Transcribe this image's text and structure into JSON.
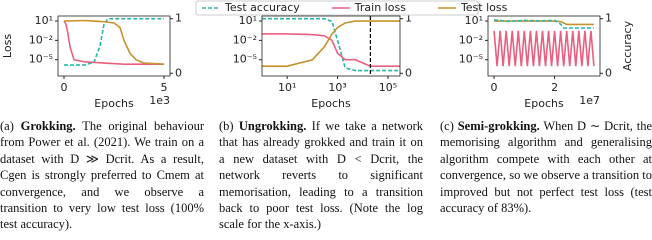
{
  "chart_data": [
    {
      "type": "line",
      "ylabel": "Loss",
      "xlabel": "Epochs",
      "x_offset_label": "1e3",
      "xlim": [
        -0.3,
        5.3
      ],
      "xticks": [
        0,
        5
      ],
      "yscale": "log",
      "ylim": [
        3e-08,
        60
      ],
      "yticks": [
        {
          "value": 10,
          "label": "10¹"
        },
        {
          "value": 0.01,
          "label": "10⁻²"
        },
        {
          "value": 1e-05,
          "label": "10⁻⁵"
        }
      ],
      "y2lim": [
        -0.05,
        1.05
      ],
      "y2ticks": [
        0,
        1
      ],
      "series": [
        {
          "name": "Test accuracy",
          "color": "#2ab5a5",
          "dash": true,
          "axis": "y2",
          "x": [
            0,
            0.5,
            1,
            1.5,
            1.8,
            2,
            2.2,
            2.5,
            3,
            4,
            5
          ],
          "values": [
            0.15,
            0.15,
            0.15,
            0.2,
            0.5,
            0.9,
            1,
            1,
            1,
            1,
            1
          ]
        },
        {
          "name": "Train loss",
          "color": "#e8607f",
          "x": [
            0,
            0.1,
            0.2,
            0.3,
            0.5,
            1,
            2,
            3,
            4,
            5
          ],
          "values": [
            10,
            3,
            0.1,
            0.001,
            1e-05,
            5e-06,
            3e-06,
            2e-06,
            2e-06,
            2e-06
          ]
        },
        {
          "name": "Test loss",
          "color": "#c8912e",
          "x": [
            0,
            1,
            1.5,
            2,
            2.5,
            2.8,
            3,
            3.3,
            3.6,
            4,
            5
          ],
          "values": [
            10,
            12,
            10,
            8,
            5,
            1,
            0.01,
            0.0001,
            1e-05,
            3e-06,
            2e-06
          ]
        }
      ]
    },
    {
      "type": "line",
      "xlabel": "Epochs",
      "xscale": "log",
      "xlim": [
        1,
        300000
      ],
      "xticks": [
        {
          "value": 10,
          "label": "10¹"
        },
        {
          "value": 1000,
          "label": "10³"
        },
        {
          "value": 100000,
          "label": "10⁵"
        }
      ],
      "yscale": "log",
      "ylim": [
        3e-08,
        60
      ],
      "yticks": [
        {
          "value": 10,
          "label": "10¹"
        },
        {
          "value": 0.01,
          "label": "10⁻²"
        },
        {
          "value": 1e-05,
          "label": "10⁻⁵"
        }
      ],
      "y2lim": [
        -0.05,
        1.05
      ],
      "y2ticks": [
        0,
        1
      ],
      "vline": 20000,
      "series": [
        {
          "name": "Test accuracy",
          "color": "#2ab5a5",
          "dash": true,
          "axis": "y2",
          "x": [
            1,
            10,
            100,
            300,
            600,
            1000,
            2000,
            5000,
            20000,
            100000,
            300000
          ],
          "values": [
            1,
            1,
            1,
            1,
            0.95,
            0.6,
            0.1,
            0.05,
            0.05,
            0.05,
            0.05
          ]
        },
        {
          "name": "Train loss",
          "color": "#e8607f",
          "x": [
            1,
            10,
            100,
            300,
            600,
            1000,
            2000,
            5000,
            20000,
            100000,
            300000
          ],
          "values": [
            0.1,
            0.1,
            0.08,
            0.05,
            0.01,
            0.0001,
            1e-05,
            1e-05,
            1e-06,
            1e-06,
            1e-06
          ]
        },
        {
          "name": "Test loss",
          "color": "#c8912e",
          "x": [
            1,
            10,
            100,
            300,
            600,
            1000,
            2000,
            5000,
            20000,
            100000,
            300000
          ],
          "values": [
            1e-06,
            1e-06,
            1e-05,
            0.001,
            0.1,
            1,
            5,
            10,
            10,
            10,
            10
          ]
        }
      ]
    },
    {
      "type": "line",
      "xlabel": "Epochs",
      "x_offset_label": "1e7",
      "y2label": "Accuracy",
      "xlim": [
        -0.2,
        3.5
      ],
      "xticks": [
        0,
        2
      ],
      "yscale": "log",
      "ylim": [
        3e-08,
        60
      ],
      "yticks": [
        {
          "value": 10,
          "label": "10¹"
        },
        {
          "value": 0.01,
          "label": "10⁻²"
        },
        {
          "value": 1e-05,
          "label": "10⁻⁵"
        }
      ],
      "y2lim": [
        -0.05,
        1.05
      ],
      "y2ticks": [
        0,
        1
      ],
      "series": [
        {
          "name": "Train loss",
          "color": "#e8607f",
          "x": [
            0,
            0.1,
            0.2,
            0.3,
            0.4,
            0.5,
            0.6,
            0.7,
            0.8,
            0.9,
            1,
            1.1,
            1.2,
            1.3,
            1.4,
            1.5,
            1.6,
            1.7,
            1.8,
            1.9,
            2,
            2.1,
            2.2,
            2.3,
            2.4,
            2.5,
            2.6,
            2.7,
            2.8,
            2.9,
            3,
            3.1,
            3.2,
            3.3
          ],
          "values": [
            0.3,
            1e-06,
            0.3,
            1e-06,
            0.3,
            1e-06,
            0.3,
            1e-06,
            0.3,
            1e-06,
            0.3,
            1e-06,
            0.3,
            1e-06,
            0.3,
            1e-06,
            0.3,
            1e-06,
            0.3,
            1e-06,
            0.3,
            1e-06,
            0.3,
            1e-06,
            0.3,
            1e-06,
            0.3,
            1e-06,
            0.3,
            1e-06,
            0.3,
            1e-06,
            0.3,
            1e-06
          ]
        },
        {
          "name": "Test loss",
          "color": "#c8912e",
          "x": [
            0,
            1,
            2,
            2.2,
            2.4,
            3,
            3.3
          ],
          "values": [
            10,
            10,
            10,
            8,
            3,
            3,
            3
          ]
        },
        {
          "name": "Test accuracy",
          "color": "#2ab5a5",
          "dash": true,
          "axis": "y2",
          "x": [
            0,
            0.5,
            1,
            1.5,
            2,
            2.2,
            2.3,
            2.5,
            3,
            3.3
          ],
          "values": [
            0.98,
            0.95,
            0.97,
            0.96,
            0.97,
            0.9,
            0.83,
            0.83,
            0.83,
            0.83
          ]
        }
      ]
    }
  ],
  "captions": [
    {
      "label": "(a)",
      "title": "Grokking.",
      "text": "The original behaviour from Power et al. (2021). We train on a dataset with D ≫ Dcrit. As a result, Cgen is strongly preferred to Cmem at convergence, and we observe a transition to very low test loss (100% test accuracy)."
    },
    {
      "label": "(b)",
      "title": "Ungrokking.",
      "text": "If we take a network that has already grokked and train it on a new dataset with D < Dcrit, the network reverts to significant memorisation, leading to a transition back to poor test loss. (Note the log scale for the x-axis.)"
    },
    {
      "label": "(c)",
      "title": "Semi-grokking.",
      "text": "When D ∼ Dcrit, the memorising algorithm and generalising algorithm compete with each other at convergence, so we observe a transition to improved but not perfect test loss (test accuracy of 83%)."
    }
  ]
}
